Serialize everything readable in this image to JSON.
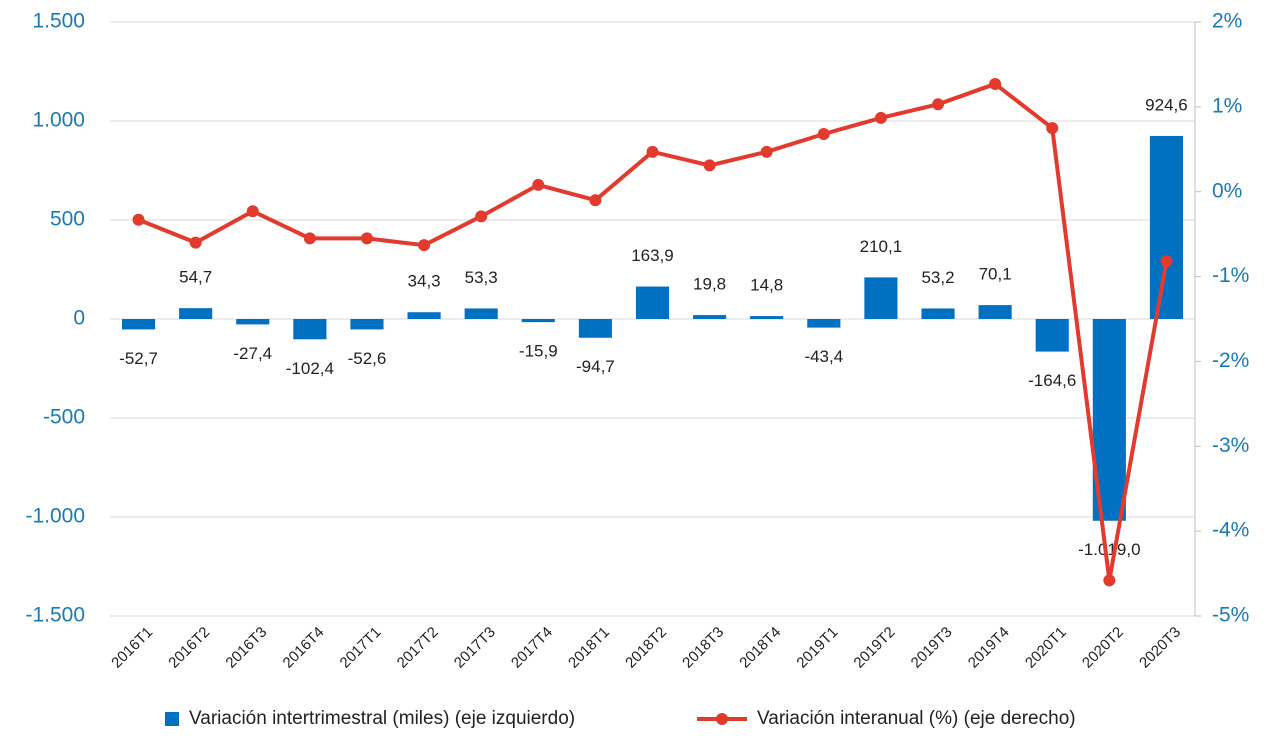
{
  "chart_data": {
    "type": "combo",
    "categories": [
      "2016T1",
      "2016T2",
      "2016T3",
      "2016T4",
      "2017T1",
      "2017T2",
      "2017T3",
      "2017T4",
      "2018T1",
      "2018T2",
      "2018T3",
      "2018T4",
      "2019T1",
      "2019T2",
      "2019T3",
      "2019T4",
      "2020T1",
      "2020T2",
      "2020T3"
    ],
    "series": [
      {
        "name": "Variación intertrimestral (miles) (eje izquierdo)",
        "type": "bar",
        "color": "#0070c0",
        "values": [
          -52.7,
          54.7,
          -27.4,
          -102.4,
          -52.6,
          34.3,
          53.3,
          -15.9,
          -94.7,
          163.9,
          19.8,
          14.8,
          -43.4,
          210.1,
          53.2,
          70.1,
          -164.6,
          -1019.0,
          924.6
        ],
        "value_labels": [
          "-52,7",
          "54,7",
          "-27,4",
          "-102,4",
          "-52,6",
          "34,3",
          "53,3",
          "-15,9",
          "-94,7",
          "163,9",
          "19,8",
          "14,8",
          "-43,4",
          "210,1",
          "53,2",
          "70,1",
          "-164,6",
          "-1.019,0",
          "924,6"
        ]
      },
      {
        "name": "Variación interanual (%) (eje derecho)",
        "type": "line",
        "axis": "y2",
        "color": "#e23b2e",
        "values": [
          -0.33,
          -0.6,
          -0.23,
          -0.55,
          -0.55,
          -0.63,
          -0.29,
          0.08,
          -0.1,
          0.47,
          0.31,
          0.47,
          0.68,
          0.87,
          1.03,
          1.27,
          0.75,
          -4.58,
          -0.82
        ]
      }
    ],
    "ylim": [
      -1500,
      1500
    ],
    "yticks": [
      {
        "value": -1500,
        "label": "-1.500"
      },
      {
        "value": -1000,
        "label": "-1.000"
      },
      -500,
      0,
      500,
      {
        "value": 1000,
        "label": "1.000"
      },
      {
        "value": 1500,
        "label": "1.500"
      }
    ],
    "y2lim": [
      -5,
      2
    ],
    "y2ticks": [
      {
        "value": -5,
        "label": "-5%"
      },
      {
        "value": -4,
        "label": "-4%"
      },
      {
        "value": -3,
        "label": "-3%"
      },
      {
        "value": -2,
        "label": "-2%"
      },
      {
        "value": -1,
        "label": "-1%"
      },
      {
        "value": 0,
        "label": "0%"
      },
      {
        "value": 1,
        "label": "1%"
      },
      {
        "value": 2,
        "label": "2%"
      }
    ],
    "grid": true
  }
}
